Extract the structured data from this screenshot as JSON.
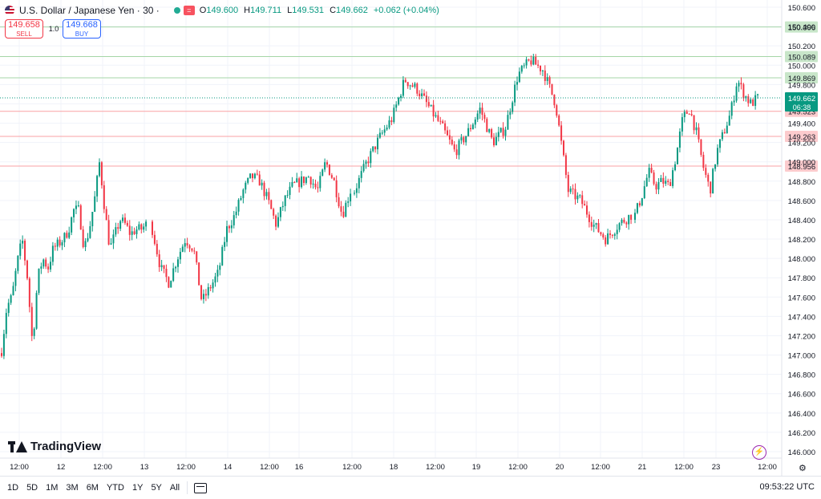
{
  "header": {
    "title": "U.S. Dollar / Japanese Yen · 30 ·",
    "ohlc": {
      "o_label": "O",
      "o": "149.600",
      "h_label": "H",
      "h": "149.711",
      "l_label": "L",
      "l": "149.531",
      "c_label": "C",
      "c": "149.662",
      "change": "+0.062 (+0.04%)"
    },
    "eq_icon": "equals-icon"
  },
  "trade": {
    "sell_price": "149.658",
    "sell_label": "SELL",
    "qty": "1.0",
    "buy_price": "149.668",
    "buy_label": "BUY"
  },
  "logo": "TradingView",
  "toolbar": {
    "ranges": [
      "1D",
      "5D",
      "1M",
      "3M",
      "6M",
      "YTD",
      "1Y",
      "5Y",
      "All"
    ],
    "utc_time": "09:53:22 UTC"
  },
  "colors": {
    "up": "#089981",
    "down": "#f23645",
    "resistance": "#a5d6a7",
    "support": "#faa1a4",
    "accent": "#22ab94"
  },
  "chart_data": {
    "type": "candlestick",
    "title": "U.S. Dollar / Japanese Yen · 30 ·",
    "xlabel": "",
    "ylabel": "",
    "ylim": [
      146.0,
      150.6
    ],
    "y_ticks": [
      "146.000",
      "146.200",
      "146.400",
      "146.600",
      "146.800",
      "147.000",
      "147.200",
      "147.400",
      "147.600",
      "147.800",
      "148.000",
      "148.200",
      "148.400",
      "148.600",
      "148.800",
      "149.000",
      "149.200",
      "149.400",
      "149.600",
      "149.800",
      "150.000",
      "150.200",
      "150.400",
      "150.600"
    ],
    "x_ticks": [
      "12:00",
      "12",
      "12:00",
      "13",
      "12:00",
      "14",
      "12:00",
      "16",
      "12:00",
      "18",
      "12:00",
      "19",
      "12:00",
      "20",
      "12:00",
      "21",
      "12:00",
      "23",
      "12:00"
    ],
    "levels": [
      {
        "value": 150.396,
        "label": "150.396",
        "kind": "resistance"
      },
      {
        "value": 150.089,
        "label": "150.089",
        "kind": "resistance"
      },
      {
        "value": 149.869,
        "label": "149.869",
        "kind": "resistance"
      },
      {
        "value": 149.523,
        "label": "149.523",
        "kind": "support"
      },
      {
        "value": 149.263,
        "label": "149.263",
        "kind": "support"
      },
      {
        "value": 148.956,
        "label": "148.956",
        "kind": "support"
      }
    ],
    "last_price": {
      "value": 149.662,
      "label": "149.662",
      "countdown": "06:38"
    },
    "series": [
      {
        "segment": 0,
        "path": [
          147.05,
          147.5,
          147.6,
          147.95,
          148.2,
          147.8,
          147.1,
          147.8,
          148.0,
          147.9,
          148.1,
          148.15,
          148.2,
          148.3,
          148.5,
          148.5,
          148.1,
          148.3,
          148.6,
          149.0,
          148.5,
          148.1,
          148.25,
          148.4,
          148.35,
          148.25,
          148.3,
          148.3,
          148.35
        ]
      },
      {
        "segment": 1,
        "path": [
          148.3,
          147.9,
          147.75,
          148.0,
          148.2,
          148.1,
          147.55,
          147.7,
          147.85,
          148.3,
          148.45,
          148.7,
          148.85,
          148.8,
          148.6,
          148.35,
          148.6,
          148.75,
          148.8,
          148.85,
          148.7,
          149.0,
          148.8,
          148.45,
          148.7
        ]
      },
      {
        "segment": 2,
        "path": [
          148.7,
          149.0,
          149.25,
          149.45,
          149.85,
          149.75,
          149.55,
          149.35,
          149.1,
          149.3,
          149.55,
          149.2,
          149.35,
          149.9,
          150.05,
          149.95,
          149.6,
          148.7,
          148.6,
          148.35,
          148.2,
          148.35,
          148.45
        ]
      },
      {
        "segment": 3,
        "path": [
          148.45,
          148.65,
          148.9,
          148.75,
          148.8,
          148.75,
          149.05,
          149.45,
          149.55,
          149.3,
          148.95,
          148.7,
          149.1,
          149.3,
          149.5,
          149.85,
          149.7,
          149.6,
          149.66
        ]
      }
    ]
  }
}
